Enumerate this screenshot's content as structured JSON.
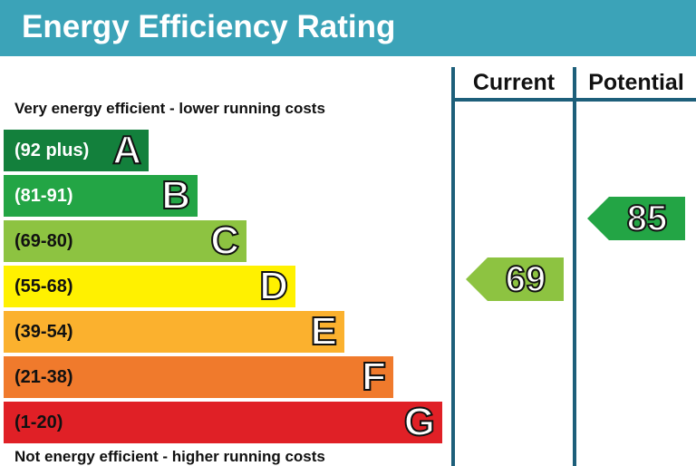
{
  "chart_data": {
    "type": "bar",
    "title": "Energy Efficiency Rating",
    "top_note": "Very energy efficient - lower running costs",
    "bottom_note": "Not energy efficient - higher running costs",
    "columns": [
      "Current",
      "Potential"
    ],
    "bands": [
      {
        "range": "(92 plus)",
        "letter": "A",
        "color": "#13803c",
        "text_color": "#ffffff"
      },
      {
        "range": "(81-91)",
        "letter": "B",
        "color": "#23a545",
        "text_color": "#ffffff"
      },
      {
        "range": "(69-80)",
        "letter": "C",
        "color": "#8dc341",
        "text_color": "#111111"
      },
      {
        "range": "(55-68)",
        "letter": "D",
        "color": "#fff100",
        "text_color": "#111111"
      },
      {
        "range": "(39-54)",
        "letter": "E",
        "color": "#fbb12e",
        "text_color": "#111111"
      },
      {
        "range": "(21-38)",
        "letter": "F",
        "color": "#f07a2c",
        "text_color": "#111111"
      },
      {
        "range": "(1-20)",
        "letter": "G",
        "color": "#e02026",
        "text_color": "#111111"
      }
    ],
    "ratings": [
      {
        "column": "Current",
        "value": 69,
        "band": "C",
        "color": "#8dc341"
      },
      {
        "column": "Potential",
        "value": 85,
        "band": "B",
        "color": "#23a545"
      }
    ]
  }
}
